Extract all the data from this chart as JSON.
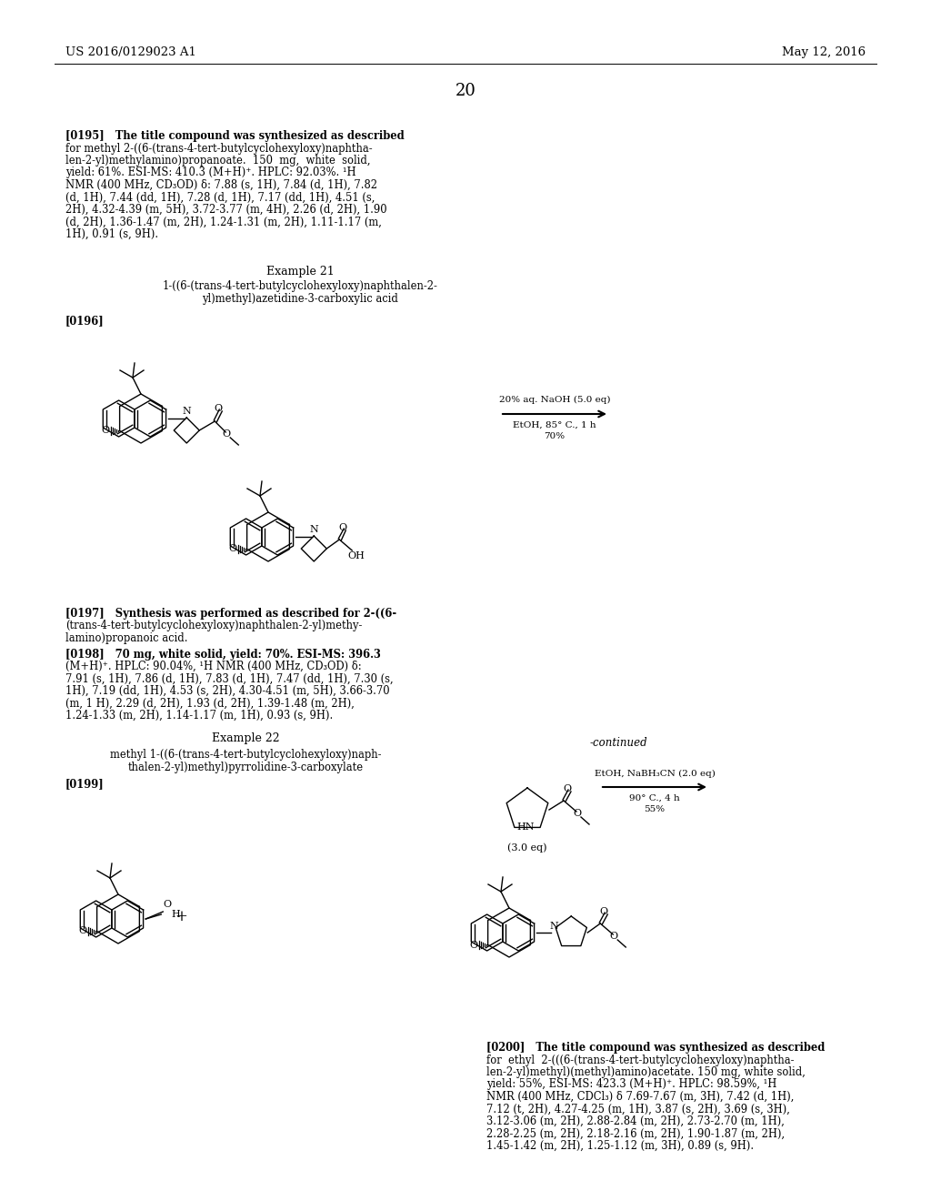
{
  "bg_color": "#ffffff",
  "header_left": "US 2016/0129023 A1",
  "header_right": "May 12, 2016",
  "page_number": "20",
  "rxn1_conditions_top": "20% aq. NaOH (5.0 eq)",
  "rxn1_conditions_mid": "EtOH, 85° C., 1 h",
  "rxn1_conditions_bot": "70%",
  "rxn2_conditions_top": "-continued",
  "rxn2_conditions_mid": "EtOH, NaBH₃CN (2.0 eq)",
  "rxn2_conditions_bot2": "90° C., 4 h",
  "rxn2_conditions_bot3": "55%",
  "rxn2_reagent": "(3.0 eq)",
  "lines_195": [
    "[0195]   The title compound was synthesized as described",
    "for methyl 2-((6-(trans-4-tert-butylcyclohexyloxy)naphtha-",
    "len-2-yl)methylamino)propanoate.  150  mg,  white  solid,",
    "yield: 61%. ESI-MS: 410.3 (M+H)⁺. HPLC: 92.03%. ¹H",
    "NMR (400 MHz, CD₃OD) δ: 7.88 (s, 1H), 7.84 (d, 1H), 7.82",
    "(d, 1H), 7.44 (dd, 1H), 7.28 (d, 1H), 7.17 (dd, 1H), 4.51 (s,",
    "2H), 4.32-4.39 (m, 5H), 3.72-3.77 (m, 4H), 2.26 (d, 2H), 1.90",
    "(d, 2H), 1.36-1.47 (m, 2H), 1.24-1.31 (m, 2H), 1.11-1.17 (m,",
    "1H), 0.91 (s, 9H)."
  ],
  "lines_197": [
    "[0197]   Synthesis was performed as described for 2-((6-",
    "(trans-4-tert-butylcyclohexyloxy)naphthalen-2-yl)methy-",
    "lamino)propanoic acid."
  ],
  "lines_198": [
    "[0198]   70 mg, white solid, yield: 70%. ESI-MS: 396.3",
    "(M+H)⁺. HPLC: 90.04%, ¹H NMR (400 MHz, CD₃OD) δ:",
    "7.91 (s, 1H), 7.86 (d, 1H), 7.83 (d, 1H), 7.47 (dd, 1H), 7.30 (s,",
    "1H), 7.19 (dd, 1H), 4.53 (s, 2H), 4.30-4.51 (m, 5H), 3.66-3.70",
    "(m, 1 H), 2.29 (d, 2H), 1.93 (d, 2H), 1.39-1.48 (m, 2H),",
    "1.24-1.33 (m, 2H), 1.14-1.17 (m, 1H), 0.93 (s, 9H)."
  ],
  "lines_200": [
    "[0200]   The title compound was synthesized as described",
    "for  ethyl  2-(((6-(trans-4-tert-butylcyclohexyloxy)naphtha-",
    "len-2-yl)methyl)(methyl)amino)acetate. 150 mg, white solid,",
    "yield: 55%, ESI-MS: 423.3 (M+H)⁺. HPLC: 98.59%, ¹H",
    "NMR (400 MHz, CDCl₃) δ 7.69-7.67 (m, 3H), 7.42 (d, 1H),",
    "7.12 (t, 2H), 4.27-4.25 (m, 1H), 3.87 (s, 2H), 3.69 (s, 3H),",
    "3.12-3.06 (m, 2H), 2.88-2.84 (m, 2H), 2.73-2.70 (m, 1H),",
    "2.28-2.25 (m, 2H), 2.18-2.16 (m, 2H), 1.90-1.87 (m, 2H),",
    "1.45-1.42 (m, 2H), 1.25-1.12 (m, 3H), 0.89 (s, 9H)."
  ]
}
